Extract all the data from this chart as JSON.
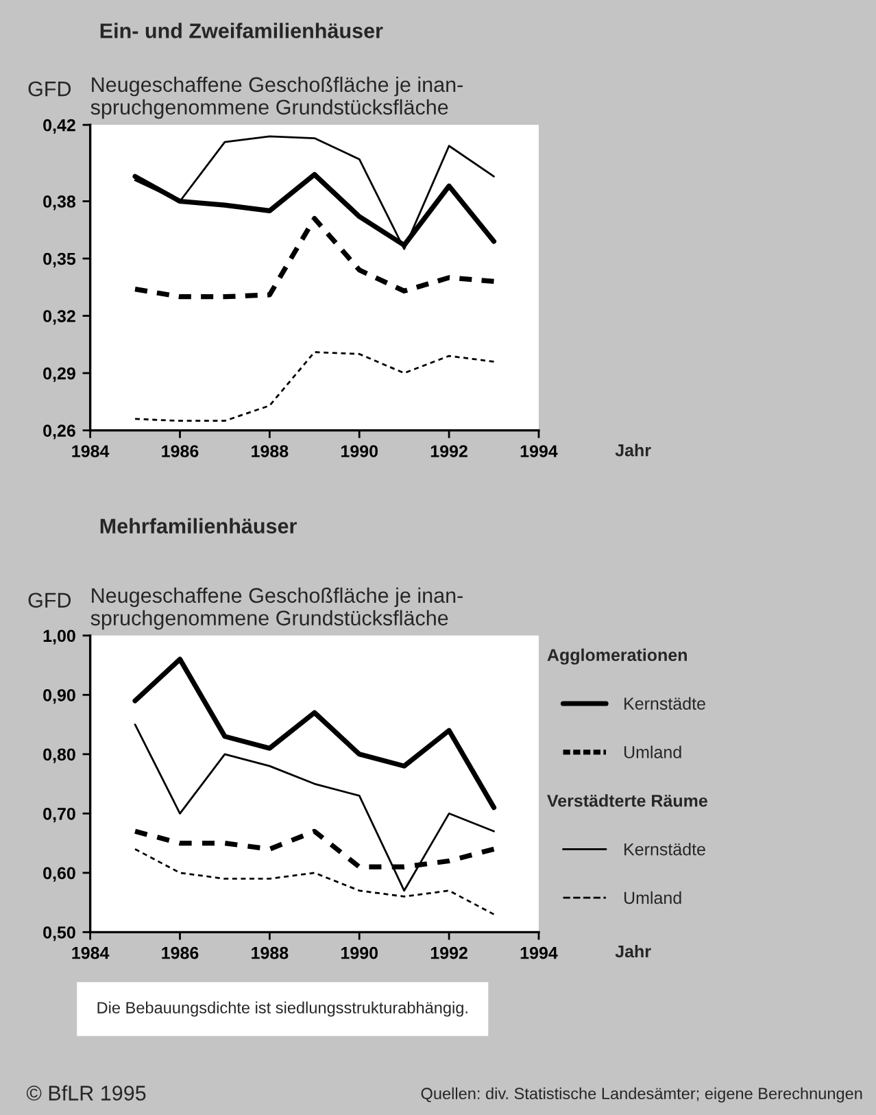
{
  "chart_data": [
    {
      "type": "line",
      "title": "Ein- und Zweifamilienhäuser",
      "subtitle": "Neugeschaffene Geschoßfläche je inan-\nspruchgenommene Grundstücksfläche",
      "ylabel": "GFD",
      "xlabel": "Jahr",
      "x": [
        1985,
        1986,
        1987,
        1988,
        1989,
        1990,
        1991,
        1992,
        1993
      ],
      "series": [
        {
          "color": "#000000",
          "line_style": "solid",
          "values": [
            0.393,
            0.38,
            0.378,
            0.375,
            0.394,
            0.372,
            0.357,
            0.388,
            0.359
          ]
        },
        {
          "color": "#000000",
          "line_style": "dashed",
          "values": [
            0.334,
            0.33,
            0.33,
            0.331,
            0.371,
            0.344,
            0.333,
            0.34,
            0.338
          ]
        },
        {
          "color": "#000000",
          "line_style": "solid",
          "values": [
            0.391,
            0.38,
            0.411,
            0.414,
            0.413,
            0.402,
            0.355,
            0.409,
            0.393
          ]
        },
        {
          "color": "#000000",
          "line_style": "dashed",
          "values": [
            0.266,
            0.265,
            0.265,
            0.273,
            0.301,
            0.3,
            0.29,
            0.299,
            0.296
          ]
        }
      ],
      "xlim": [
        1984,
        1994
      ],
      "xticks": [
        1984,
        1986,
        1988,
        1990,
        1992,
        1994
      ],
      "ylim": [
        0.26,
        0.42
      ],
      "yticks": [
        {
          "value": 0.26,
          "label": "0,26"
        },
        {
          "value": 0.29,
          "label": "0,29"
        },
        {
          "value": 0.32,
          "label": "0,32"
        },
        {
          "value": 0.35,
          "label": "0,35"
        },
        {
          "value": 0.38,
          "label": "0,38"
        },
        {
          "value": 0.42,
          "label": "0,42"
        }
      ],
      "grid": false,
      "legend": false,
      "marker": "none"
    },
    {
      "type": "line",
      "title": "Mehrfamilienhäuser",
      "subtitle": "Neugeschaffene Geschoßfläche je inan-\nspruchgenommene Grundstücksfläche",
      "ylabel": "GFD",
      "xlabel": "Jahr",
      "legend_title": [
        "Agglomerationen",
        "Verstädterte Räume"
      ],
      "x": [
        1985,
        1986,
        1987,
        1988,
        1989,
        1990,
        1991,
        1992,
        1993
      ],
      "series": [
        {
          "name": "Kernstädte",
          "color": "#000000",
          "line_style": "solid",
          "values": [
            0.89,
            0.96,
            0.83,
            0.81,
            0.87,
            0.8,
            0.78,
            0.84,
            0.71
          ]
        },
        {
          "name": "Umland",
          "color": "#000000",
          "line_style": "dashed",
          "values": [
            0.67,
            0.65,
            0.65,
            0.64,
            0.67,
            0.61,
            0.61,
            0.62,
            0.64
          ]
        },
        {
          "name": "Kernstädte",
          "color": "#000000",
          "line_style": "solid",
          "values": [
            0.85,
            0.7,
            0.8,
            0.78,
            0.75,
            0.73,
            0.57,
            0.7,
            0.67
          ]
        },
        {
          "name": "Umland",
          "color": "#000000",
          "line_style": "dashed",
          "values": [
            0.64,
            0.6,
            0.59,
            0.59,
            0.6,
            0.57,
            0.56,
            0.57,
            0.53
          ]
        }
      ],
      "xlim": [
        1984,
        1994
      ],
      "xticks": [
        1984,
        1986,
        1988,
        1990,
        1992,
        1994
      ],
      "ylim": [
        0.5,
        1.0
      ],
      "yticks": [
        {
          "value": 0.5,
          "label": "0,50"
        },
        {
          "value": 0.6,
          "label": "0,60"
        },
        {
          "value": 0.7,
          "label": "0,70"
        },
        {
          "value": 0.8,
          "label": "0,80"
        },
        {
          "value": 0.9,
          "label": "0,90"
        },
        {
          "value": 1.0,
          "label": "1,00"
        }
      ],
      "grid": false,
      "legend": "right",
      "marker": "none",
      "annotations": [
        "Die Bebauungsdichte ist siedlungsstrukturabhängig.",
        "© BfLR 1995",
        "Quellen: div. Statistische Landesämter; eigene Berechnungen"
      ]
    }
  ]
}
